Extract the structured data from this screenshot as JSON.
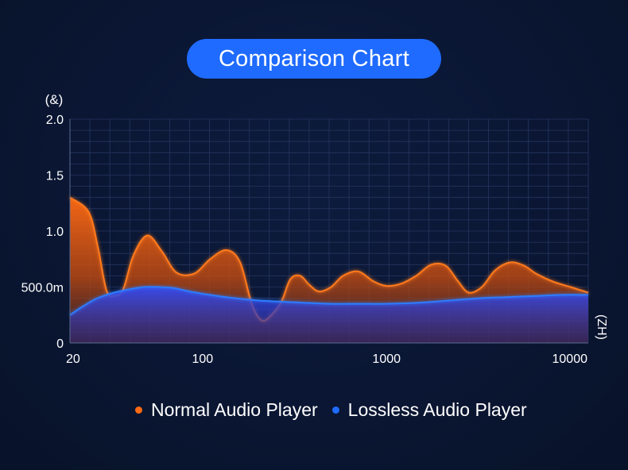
{
  "colors": {
    "background": "#0a1633",
    "title_pill": "#1f6bff",
    "normal_series": "#ff6a13",
    "lossless_series": "#1f6bff",
    "grid": "#2a3a66"
  },
  "chart_data": {
    "type": "area",
    "title": "Comparison Chart",
    "ylabel": "(&)",
    "xlabel": "(ZH)",
    "x_scale": "log",
    "xlim": [
      19,
      12500
    ],
    "ylim": [
      0,
      2.0
    ],
    "grid": true,
    "legend_position": "bottom",
    "x_ticks": [
      {
        "value": 20,
        "label": "20"
      },
      {
        "value": 100,
        "label": "100"
      },
      {
        "value": 1000,
        "label": "1000"
      },
      {
        "value": 10000,
        "label": "10000"
      }
    ],
    "y_ticks": [
      {
        "value": 0,
        "label": "0"
      },
      {
        "value": 0.5,
        "label": "500.0m"
      },
      {
        "value": 1.0,
        "label": "1.0"
      },
      {
        "value": 1.5,
        "label": "1.5"
      },
      {
        "value": 2.0,
        "label": "2.0"
      }
    ],
    "series": [
      {
        "name": "Normal Audio Player",
        "color": "#ff6a13",
        "x": [
          19,
          24,
          27,
          30,
          33,
          37,
          42,
          50,
          60,
          72,
          90,
          110,
          135,
          160,
          185,
          210,
          240,
          270,
          300,
          340,
          380,
          430,
          500,
          580,
          700,
          850,
          1000,
          1200,
          1450,
          1750,
          2100,
          2450,
          2800,
          3300,
          3900,
          4700,
          5600,
          6500,
          8000,
          10000,
          12500
        ],
        "y": [
          1.3,
          1.17,
          0.85,
          0.47,
          0.42,
          0.48,
          0.78,
          0.96,
          0.82,
          0.63,
          0.62,
          0.75,
          0.83,
          0.72,
          0.35,
          0.2,
          0.26,
          0.38,
          0.57,
          0.6,
          0.52,
          0.46,
          0.5,
          0.6,
          0.64,
          0.55,
          0.51,
          0.53,
          0.6,
          0.7,
          0.69,
          0.55,
          0.45,
          0.5,
          0.65,
          0.72,
          0.69,
          0.62,
          0.55,
          0.5,
          0.45
        ]
      },
      {
        "name": "Lossless Audio Player",
        "color": "#1f6bff",
        "x": [
          19,
          22,
          26,
          30,
          35,
          40,
          48,
          58,
          70,
          85,
          100,
          120,
          150,
          200,
          260,
          350,
          500,
          700,
          1000,
          1500,
          2200,
          3200,
          4500,
          6500,
          9000,
          12500
        ],
        "y": [
          0.25,
          0.32,
          0.39,
          0.43,
          0.46,
          0.48,
          0.5,
          0.5,
          0.49,
          0.46,
          0.44,
          0.42,
          0.4,
          0.38,
          0.37,
          0.36,
          0.35,
          0.35,
          0.35,
          0.36,
          0.38,
          0.4,
          0.41,
          0.42,
          0.43,
          0.43
        ]
      }
    ]
  }
}
